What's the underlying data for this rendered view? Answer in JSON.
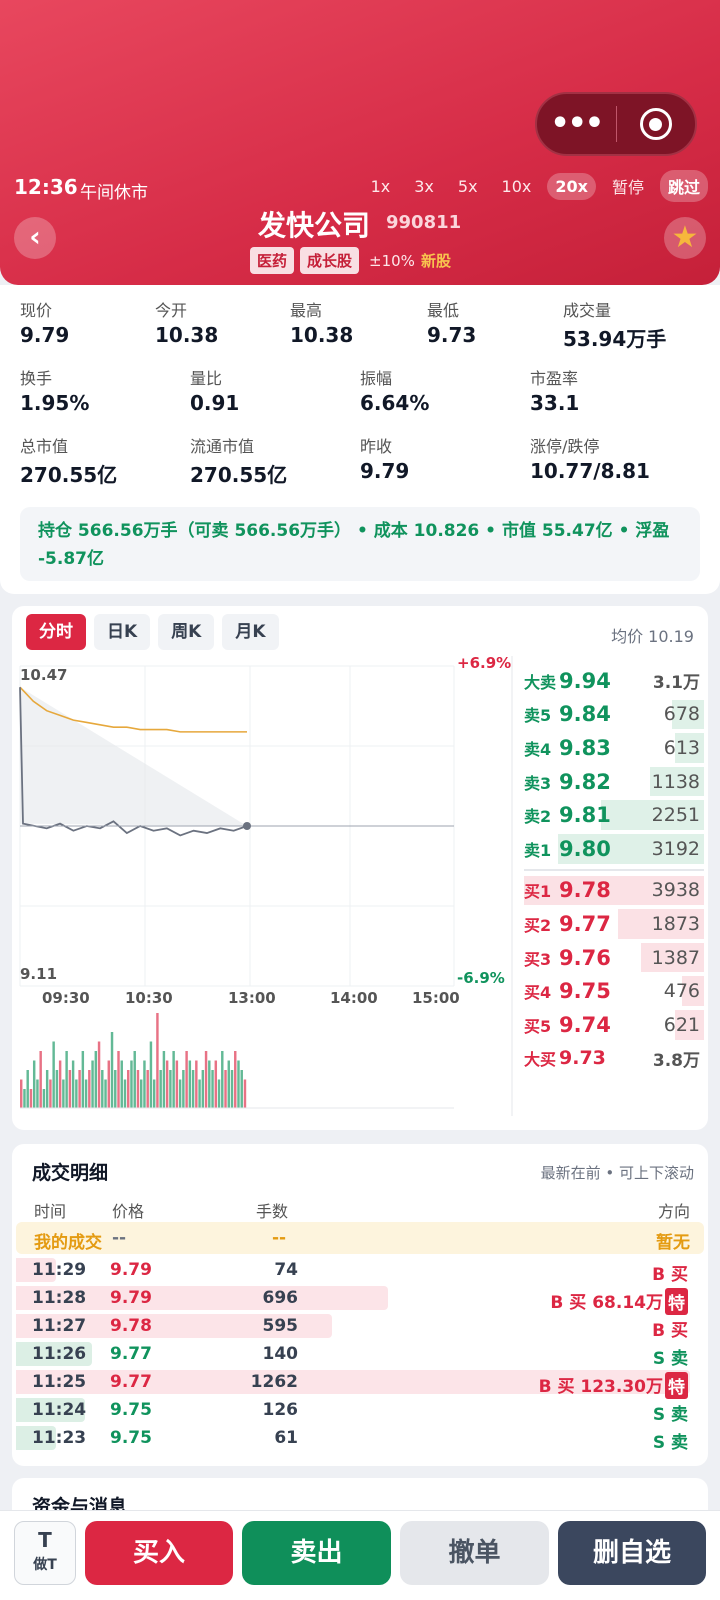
{
  "header": {
    "time": "12:36",
    "session": "午间休市",
    "speeds": [
      "1x",
      "3x",
      "5x",
      "10x",
      "20x"
    ],
    "active_speed": "20x",
    "pause": "暂停",
    "skip": "跳过",
    "stock_name": "发快公司",
    "stock_code": "990811",
    "tags": [
      "医药",
      "成长股"
    ],
    "limit": "±10%",
    "new_stock": "新股",
    "back_icon": "‹",
    "star_icon": "★"
  },
  "quote": {
    "row1": [
      {
        "label": "现价",
        "value": "9.79",
        "color": "dark"
      },
      {
        "label": "今开",
        "value": "10.38",
        "color": "red"
      },
      {
        "label": "最高",
        "value": "10.38",
        "color": "red"
      },
      {
        "label": "最低",
        "value": "9.73",
        "color": "green"
      },
      {
        "label": "成交量",
        "value": "53.94万手",
        "color": "dark"
      }
    ],
    "row2": [
      {
        "label": "换手",
        "value": "1.95%"
      },
      {
        "label": "量比",
        "value": "0.91"
      },
      {
        "label": "振幅",
        "value": "6.64%"
      },
      {
        "label": "市盈率",
        "value": "33.1"
      }
    ],
    "row3": [
      {
        "label": "总市值",
        "value": "270.55亿"
      },
      {
        "label": "流通市值",
        "value": "270.55亿"
      },
      {
        "label": "昨收",
        "value": "9.79"
      },
      {
        "label": "涨停/跌停",
        "value": "10.77/8.81"
      }
    ],
    "holding": "持仓 566.56万手（可卖 566.56万手） • 成本 10.826 • 市值 55.47亿 • 浮盈 -5.87亿"
  },
  "chart": {
    "tabs": [
      "分时",
      "日K",
      "周K",
      "月K"
    ],
    "active_tab": "分时",
    "avg_price": "均价 10.19",
    "y_top_label": "10.47",
    "y_bottom_label": "9.11",
    "pct_top": "+6.9%",
    "pct_bottom": "-6.9%",
    "x_ticks": [
      "09:30",
      "10:30",
      "13:00",
      "14:00",
      "15:00"
    ],
    "colors": {
      "up": "#dc2743",
      "down": "#10935d",
      "avg_line": "#e6a83c",
      "price_line": "#6b7280"
    }
  },
  "chart_data": {
    "type": "line",
    "x_ticks": [
      "09:30",
      "10:30",
      "13:00",
      "14:00",
      "15:00"
    ],
    "ylim": [
      9.11,
      10.47
    ],
    "prev_close": 9.79,
    "series": [
      {
        "values": [
          10.38,
          9.8,
          9.78,
          9.8,
          9.77,
          9.79,
          9.78,
          9.81,
          9.76,
          9.79,
          9.77,
          9.78,
          9.75,
          9.77,
          9.76,
          9.78,
          9.77,
          9.79
        ]
      },
      {
        "values": [
          10.38,
          10.32,
          10.28,
          10.26,
          10.24,
          10.23,
          10.22,
          10.21,
          10.21,
          10.2,
          10.2,
          10.2,
          10.19,
          10.19,
          10.19,
          10.19,
          10.19,
          10.19
        ]
      }
    ],
    "volume_bars": [
      3,
      2,
      4,
      2,
      5,
      3,
      6,
      2,
      4,
      3,
      7,
      4,
      5,
      3,
      6,
      4,
      5,
      3,
      4,
      6,
      3,
      4,
      5,
      6,
      7,
      4,
      3,
      5,
      8,
      4,
      6,
      5,
      3,
      4,
      5,
      6,
      4,
      3,
      5,
      4,
      7,
      3,
      10,
      4,
      6,
      5,
      4,
      6,
      5,
      3,
      4,
      6,
      5,
      4,
      5,
      3,
      4,
      6,
      5,
      4,
      5,
      3,
      6,
      4,
      5,
      4,
      6,
      5,
      4,
      3
    ]
  },
  "orderbook": {
    "top": {
      "label": "大卖",
      "price": "9.94",
      "qty": "3.1万"
    },
    "asks": [
      {
        "label": "卖5",
        "price": "9.84",
        "qty": "678",
        "depth": 0.18
      },
      {
        "label": "卖4",
        "price": "9.83",
        "qty": "613",
        "depth": 0.16
      },
      {
        "label": "卖3",
        "price": "9.82",
        "qty": "1138",
        "depth": 0.3
      },
      {
        "label": "卖2",
        "price": "9.81",
        "qty": "2251",
        "depth": 0.57
      },
      {
        "label": "卖1",
        "price": "9.80",
        "qty": "3192",
        "depth": 0.81
      }
    ],
    "bids": [
      {
        "label": "买1",
        "price": "9.78",
        "qty": "3938",
        "depth": 1.0
      },
      {
        "label": "买2",
        "price": "9.77",
        "qty": "1873",
        "depth": 0.48
      },
      {
        "label": "买3",
        "price": "9.76",
        "qty": "1387",
        "depth": 0.35
      },
      {
        "label": "买4",
        "price": "9.75",
        "qty": "476",
        "depth": 0.12
      },
      {
        "label": "买5",
        "price": "9.74",
        "qty": "621",
        "depth": 0.16
      }
    ],
    "bottom": {
      "label": "大买",
      "price": "9.73",
      "qty": "3.8万"
    }
  },
  "trades": {
    "title": "成交明细",
    "hint": "最新在前 • 可上下滚动",
    "headers": {
      "time": "时间",
      "price": "价格",
      "qty": "手数",
      "dir": "方向"
    },
    "mine": {
      "label": "我的成交",
      "price": "--",
      "qty": "--",
      "dir": "暂无"
    },
    "rows": [
      {
        "time": "11:29",
        "price": "9.79",
        "qty": "74",
        "dir": "B 买",
        "side": "buy",
        "share": 0.05,
        "special": ""
      },
      {
        "time": "11:28",
        "price": "9.79",
        "qty": "696",
        "dir": "B 买 68.14万",
        "side": "buy",
        "share": 0.54,
        "special": "特"
      },
      {
        "time": "11:27",
        "price": "9.78",
        "qty": "595",
        "dir": "B 买",
        "side": "buy",
        "share": 0.46,
        "special": ""
      },
      {
        "time": "11:26",
        "price": "9.77",
        "qty": "140",
        "dir": "S 卖",
        "side": "sell",
        "share": 0.11,
        "special": ""
      },
      {
        "time": "11:25",
        "price": "9.77",
        "qty": "1262",
        "dir": "B 买 123.30万",
        "side": "buy",
        "share": 0.98,
        "special": "特"
      },
      {
        "time": "11:24",
        "price": "9.75",
        "qty": "126",
        "dir": "S 卖",
        "side": "sell",
        "share": 0.1,
        "special": ""
      },
      {
        "time": "11:23",
        "price": "9.75",
        "qty": "61",
        "dir": "S 卖",
        "side": "sell",
        "share": 0.05,
        "special": ""
      }
    ]
  },
  "next_section": "资金与消息",
  "bottom_bar": {
    "t_label": "T",
    "t_sub": "做T",
    "buy": "买入",
    "sell": "卖出",
    "cancel": "撤单",
    "remove_watch": "删自选"
  }
}
